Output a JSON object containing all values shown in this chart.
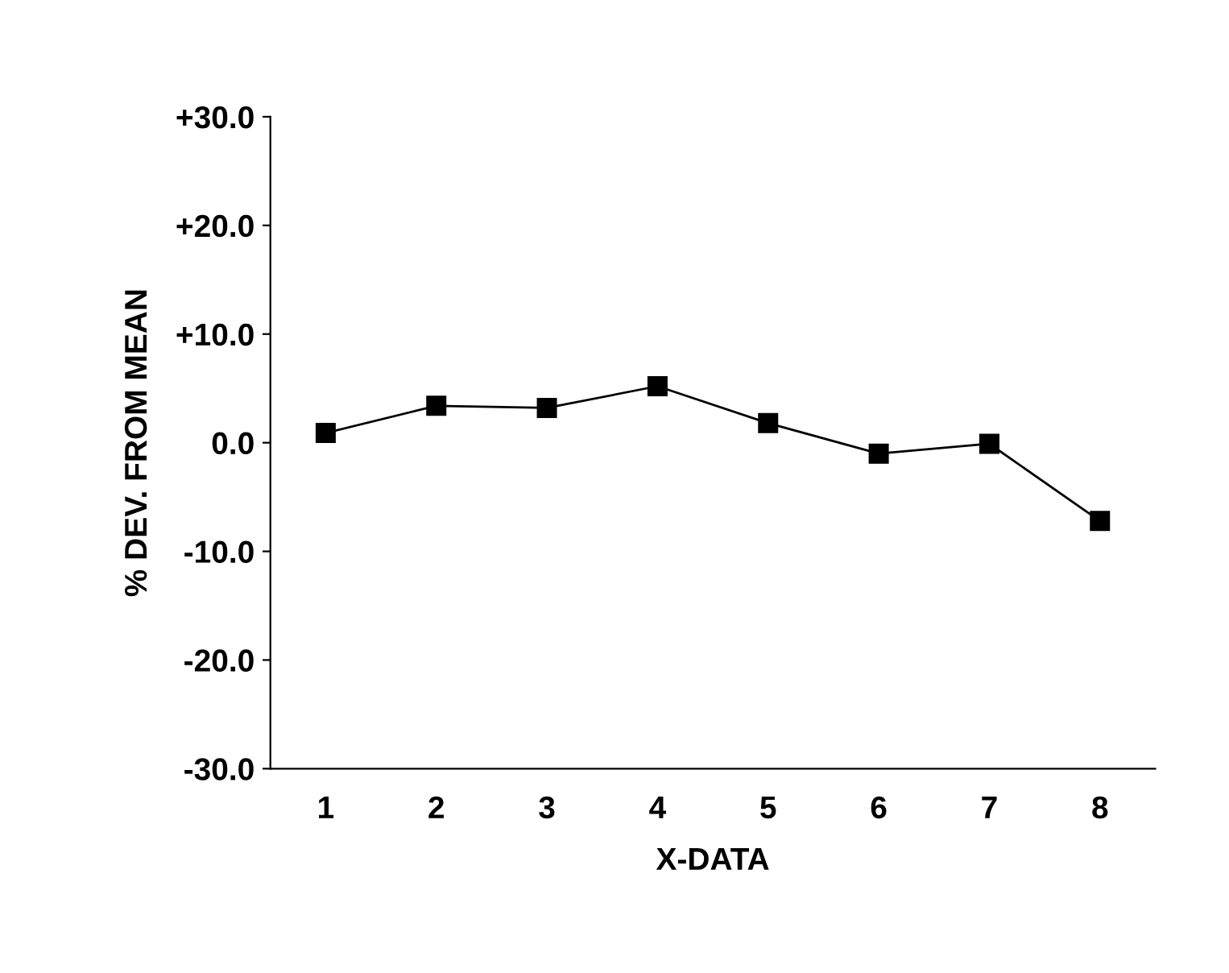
{
  "chart_data": {
    "type": "line",
    "xlabel": "X-DATA",
    "ylabel": "% DEV. FROM MEAN",
    "categories": [
      "1",
      "2",
      "3",
      "4",
      "5",
      "6",
      "7",
      "8"
    ],
    "series": [
      {
        "color": "#000000",
        "values": [
          0.9,
          3.4,
          3.2,
          5.2,
          1.8,
          -1.0,
          -0.1,
          -7.2
        ]
      }
    ],
    "ylim": [
      -30,
      30
    ],
    "yticks": [
      {
        "value": -30,
        "label": "-30.0"
      },
      {
        "value": -20,
        "label": "-20.0"
      },
      {
        "value": -10,
        "label": "-10.0"
      },
      {
        "value": 0,
        "label": "0.0"
      },
      {
        "value": 10,
        "label": "+10.0"
      },
      {
        "value": 20,
        "label": "+20.0"
      },
      {
        "value": 30,
        "label": "+30.0"
      }
    ],
    "marker": "square",
    "line_style": "solid",
    "grid": false,
    "legend": false
  }
}
